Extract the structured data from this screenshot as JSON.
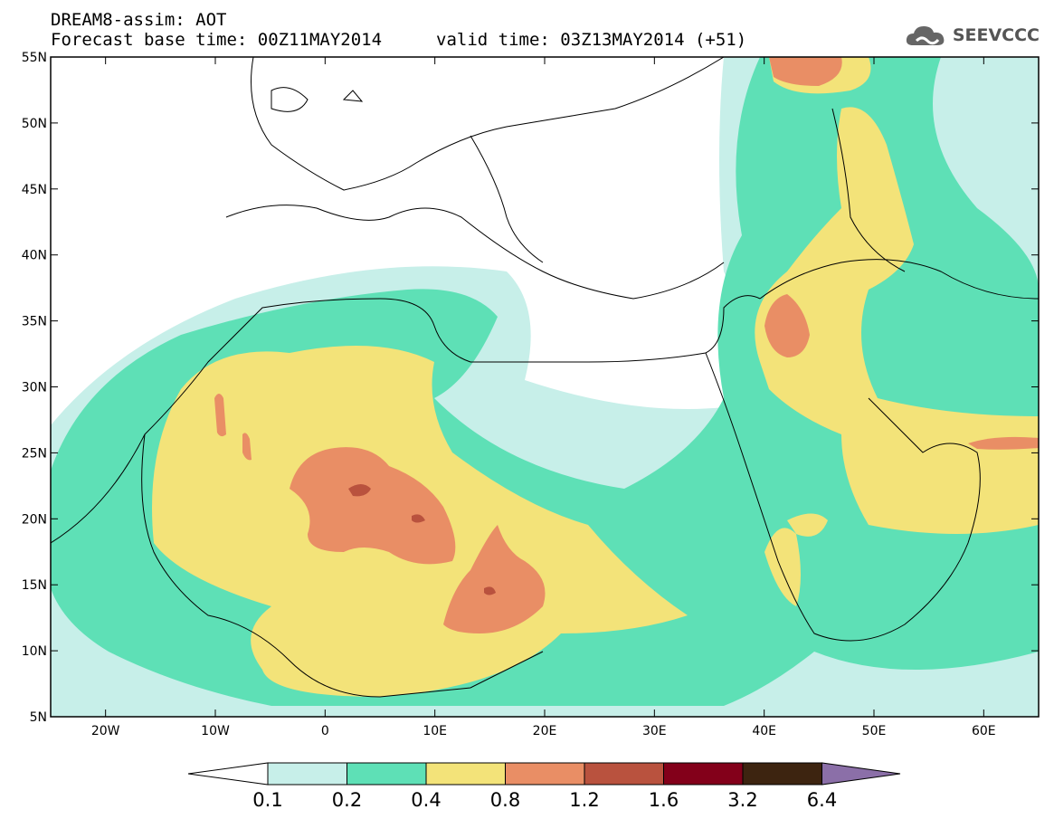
{
  "header": {
    "title": "DREAM8-assim: AOT",
    "base_time": "Forecast base time: 00Z11MAY2014",
    "valid_time": "valid time: 03Z13MAY2014 (+51)"
  },
  "logo": {
    "text": "SEEVCCC",
    "icon": "cloud-icon"
  },
  "map": {
    "lon_range": [
      -25,
      65
    ],
    "lat_range": [
      5,
      55
    ],
    "lat_ticks": [
      "5N",
      "10N",
      "15N",
      "20N",
      "25N",
      "30N",
      "35N",
      "40N",
      "45N",
      "50N",
      "55N"
    ],
    "lon_ticks": [
      "20W",
      "10W",
      "0",
      "10E",
      "20E",
      "30E",
      "40E",
      "50E",
      "60E"
    ]
  },
  "colorbar": {
    "levels": [
      "0.1",
      "0.2",
      "0.4",
      "0.8",
      "1.2",
      "1.6",
      "3.2",
      "6.4"
    ],
    "colors": [
      "#ffffff",
      "#c7efe9",
      "#5ee0b6",
      "#f3e379",
      "#e98e65",
      "#b9523e",
      "#83001a",
      "#3d2410",
      "#8b6fa8"
    ]
  }
}
